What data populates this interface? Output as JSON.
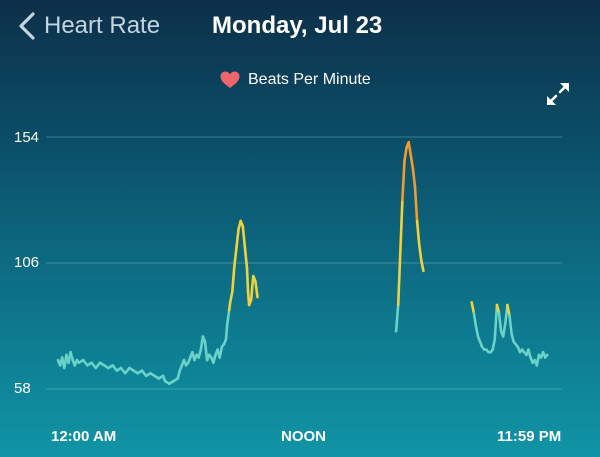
{
  "header": {
    "back_label": "Heart Rate",
    "date": "Monday, Jul 23"
  },
  "icons": {
    "back": "chevron-left-icon",
    "heart": "heart-icon",
    "expand": "expand-arrows-icon"
  },
  "colors": {
    "heart": "#f0646e",
    "resting_zone": "#6ad2c8",
    "fat_burn_zone": "#f2d23a",
    "cardio_zone": "#f39b2e",
    "gridline": "#9fd6e2"
  },
  "chart_data": {
    "type": "line",
    "legend": "Beats Per Minute",
    "y_ticks": [
      "154",
      "106",
      "58"
    ],
    "ylim": [
      58,
      154
    ],
    "x_ticks": [
      "12:00 AM",
      "NOON",
      "11:59 PM"
    ],
    "x_unit": "hours since midnight",
    "xlim": [
      0,
      24
    ],
    "grid": true,
    "legend_position": "top-center",
    "zone_thresholds": {
      "fat_burn": 88,
      "cardio": 123
    },
    "series": [
      {
        "segments": [
          [
            [
              0.0,
              69
            ],
            [
              0.1,
              67
            ],
            [
              0.2,
              70
            ],
            [
              0.3,
              66
            ],
            [
              0.4,
              71
            ],
            [
              0.5,
              68
            ],
            [
              0.6,
              72
            ],
            [
              0.7,
              69
            ],
            [
              0.8,
              67
            ],
            [
              0.9,
              69
            ],
            [
              1.0,
              68
            ],
            [
              1.2,
              69
            ],
            [
              1.4,
              67
            ],
            [
              1.6,
              68
            ],
            [
              1.8,
              66
            ],
            [
              2.0,
              68
            ],
            [
              2.2,
              67
            ],
            [
              2.4,
              66
            ],
            [
              2.6,
              67
            ],
            [
              2.8,
              65
            ],
            [
              3.0,
              66
            ],
            [
              3.2,
              64
            ],
            [
              3.4,
              66
            ],
            [
              3.6,
              65
            ],
            [
              3.8,
              64
            ],
            [
              4.0,
              65
            ],
            [
              4.2,
              63
            ],
            [
              4.4,
              64
            ],
            [
              4.6,
              63
            ],
            [
              4.8,
              62
            ],
            [
              5.0,
              63
            ],
            [
              5.1,
              61
            ],
            [
              5.3,
              60
            ],
            [
              5.5,
              61
            ],
            [
              5.7,
              62
            ],
            [
              5.8,
              65
            ],
            [
              5.9,
              67
            ],
            [
              6.0,
              69
            ],
            [
              6.1,
              67
            ],
            [
              6.2,
              68
            ],
            [
              6.3,
              70
            ],
            [
              6.4,
              72
            ],
            [
              6.5,
              69
            ],
            [
              6.6,
              71
            ],
            [
              6.7,
              70
            ],
            [
              6.8,
              73
            ],
            [
              6.9,
              78
            ],
            [
              7.0,
              76
            ],
            [
              7.1,
              69
            ],
            [
              7.2,
              71
            ],
            [
              7.3,
              70
            ],
            [
              7.4,
              68
            ],
            [
              7.5,
              71
            ],
            [
              7.6,
              73
            ],
            [
              7.7,
              70
            ],
            [
              7.8,
              74
            ],
            [
              7.9,
              75
            ],
            [
              8.0,
              77
            ],
            [
              8.05,
              82
            ],
            [
              8.1,
              85
            ],
            [
              8.15,
              88
            ],
            [
              8.2,
              91
            ],
            [
              8.3,
              95
            ],
            [
              8.4,
              105
            ],
            [
              8.5,
              112
            ],
            [
              8.6,
              119
            ],
            [
              8.7,
              122
            ],
            [
              8.8,
              120
            ],
            [
              8.9,
              112
            ],
            [
              9.0,
              104
            ],
            [
              9.05,
              95
            ],
            [
              9.1,
              90
            ],
            [
              9.2,
              92
            ],
            [
              9.25,
              97
            ],
            [
              9.3,
              101
            ],
            [
              9.4,
              99
            ],
            [
              9.5,
              93
            ]
          ],
          [
            [
              16.1,
              80
            ],
            [
              16.2,
              90
            ],
            [
              16.3,
              110
            ],
            [
              16.4,
              130
            ],
            [
              16.5,
              145
            ],
            [
              16.6,
              150
            ],
            [
              16.7,
              152
            ],
            [
              16.8,
              147
            ],
            [
              16.9,
              142
            ],
            [
              17.0,
              135
            ],
            [
              17.1,
              122
            ],
            [
              17.2,
              113
            ],
            [
              17.3,
              107
            ],
            [
              17.4,
              103
            ]
          ],
          [
            [
              19.7,
              91
            ],
            [
              19.8,
              87
            ],
            [
              19.9,
              82
            ],
            [
              20.0,
              78
            ],
            [
              20.1,
              76
            ],
            [
              20.2,
              74
            ],
            [
              20.3,
              73
            ],
            [
              20.4,
              73
            ],
            [
              20.5,
              72
            ],
            [
              20.6,
              72
            ],
            [
              20.7,
              73
            ],
            [
              20.8,
              77
            ],
            [
              20.9,
              90
            ],
            [
              21.0,
              87
            ],
            [
              21.1,
              80
            ],
            [
              21.2,
              78
            ],
            [
              21.3,
              83
            ],
            [
              21.4,
              90
            ],
            [
              21.5,
              86
            ],
            [
              21.6,
              79
            ],
            [
              21.7,
              76
            ],
            [
              21.8,
              75
            ],
            [
              21.9,
              74
            ],
            [
              22.0,
              72
            ],
            [
              22.1,
              73
            ],
            [
              22.2,
              72
            ],
            [
              22.3,
              71
            ],
            [
              22.4,
              73
            ],
            [
              22.5,
              70
            ],
            [
              22.6,
              68
            ],
            [
              22.7,
              69
            ],
            [
              22.8,
              67
            ],
            [
              22.9,
              71
            ],
            [
              23.0,
              70
            ],
            [
              23.1,
              72
            ],
            [
              23.2,
              70
            ],
            [
              23.3,
              71
            ]
          ]
        ]
      }
    ]
  }
}
